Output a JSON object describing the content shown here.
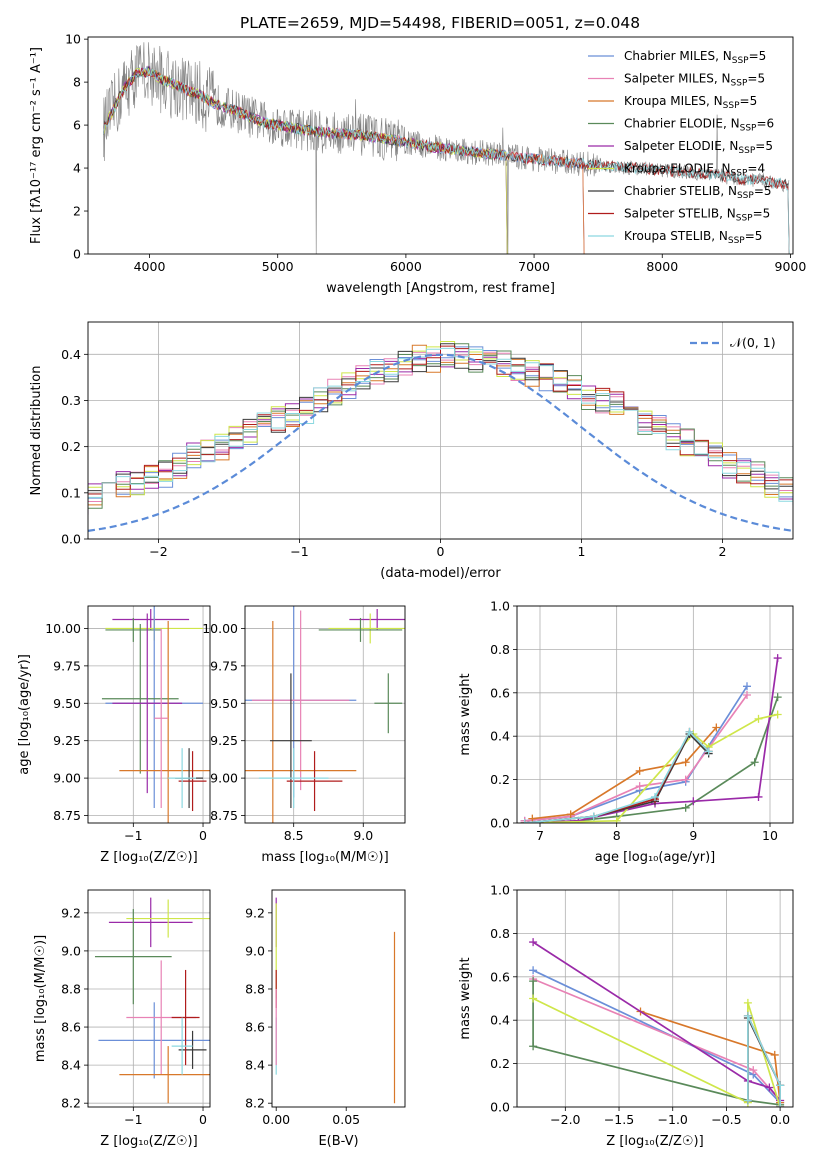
{
  "figure_title": "PLATE=2659, MJD=54498, FIBERID=0051, z=0.048",
  "colors": {
    "Chabrier MILES": "#6b8fd8",
    "Salpeter MILES": "#e882b5",
    "Kroupa MILES": "#d8782a",
    "Chabrier ELODIE": "#5a8a5a",
    "Salpeter ELODIE": "#9a2aa8",
    "Kroupa ELODIE": "#cfe64a",
    "Chabrier STELIB": "#3a3a3a",
    "Salpeter STELIB": "#b01c1c",
    "Kroupa STELIB": "#8cd8e0",
    "data": "#808080",
    "normal": "#5b8bd8"
  },
  "chart_data": [
    {
      "id": "spectrum",
      "type": "line",
      "xlabel": "wavelength [Angstrom, rest frame]",
      "ylabel": "Flux [fλ10⁻¹⁷ erg cm⁻² s⁻¹ A⁻¹]",
      "xlim": [
        3520,
        9020
      ],
      "ylim": [
        0,
        10.1
      ],
      "xticks": [
        4000,
        5000,
        6000,
        7000,
        8000,
        9000
      ],
      "yticks": [
        0,
        2,
        4,
        6,
        8,
        10
      ],
      "grid": false,
      "legend": "top-right",
      "continuum": {
        "x": [
          3640,
          3700,
          3800,
          3900,
          4000,
          4100,
          4200,
          4300,
          4400,
          4500,
          4700,
          4900,
          5100,
          5300,
          5500,
          5700,
          6000,
          6300,
          6600,
          6900,
          7200,
          7400,
          7600,
          7800,
          8000,
          8200,
          8400,
          8600,
          8800,
          8990
        ],
        "y": [
          5.8,
          6.5,
          7.7,
          8.4,
          8.5,
          8.1,
          7.9,
          7.6,
          7.4,
          7.0,
          6.6,
          6.1,
          5.9,
          5.7,
          5.6,
          5.5,
          5.2,
          4.9,
          4.7,
          4.5,
          4.3,
          4.2,
          4.1,
          4.0,
          3.9,
          3.8,
          3.7,
          3.5,
          3.4,
          3.2
        ]
      },
      "model_end": {
        "Chabrier MILES": 7400,
        "Salpeter MILES": 7400,
        "Kroupa MILES": 7400,
        "Chabrier ELODIE": 6800,
        "Salpeter ELODIE": 6800,
        "Kroupa ELODIE": 6800,
        "Chabrier STELIB": 9000,
        "Salpeter STELIB": 9000,
        "Kroupa STELIB": 9000
      },
      "series": [
        {
          "name": "Chabrier MILES",
          "label": "Chabrier MILES, N",
          "n": "5"
        },
        {
          "name": "Salpeter MILES",
          "label": "Salpeter MILES, N",
          "n": "5"
        },
        {
          "name": "Kroupa MILES",
          "label": "Kroupa MILES, N",
          "n": "5"
        },
        {
          "name": "Chabrier ELODIE",
          "label": "Chabrier ELODIE, N",
          "n": "6"
        },
        {
          "name": "Salpeter ELODIE",
          "label": "Salpeter ELODIE, N",
          "n": "5"
        },
        {
          "name": "Kroupa ELODIE",
          "label": "Kroupa ELODIE, N",
          "n": "4"
        },
        {
          "name": "Chabrier STELIB",
          "label": "Chabrier STELIB, N",
          "n": "5"
        },
        {
          "name": "Salpeter STELIB",
          "label": "Salpeter STELIB, N",
          "n": "5"
        },
        {
          "name": "Kroupa STELIB",
          "label": "Kroupa STELIB, N",
          "n": "5"
        }
      ],
      "n_sub": "SSP"
    },
    {
      "id": "residuals",
      "type": "histogram",
      "xlabel": "(data-model)/error",
      "ylabel": "Normed distribution",
      "xlim": [
        -2.5,
        2.5
      ],
      "ylim": [
        0,
        0.47
      ],
      "xticks": [
        -2,
        -1,
        0,
        1,
        2
      ],
      "yticks": [
        0.0,
        0.1,
        0.2,
        0.3,
        0.4
      ],
      "grid": true,
      "legend": "top-right",
      "legend_label": "𝒩(0, 1)",
      "bin_width": 0.1,
      "base": [
        0.03,
        0.03,
        0.035,
        0.04,
        0.045,
        0.05,
        0.06,
        0.06,
        0.07,
        0.08,
        0.08,
        0.09,
        0.1,
        0.12,
        0.12,
        0.13,
        0.14,
        0.16,
        0.18,
        0.19,
        0.2,
        0.22,
        0.23,
        0.25,
        0.26,
        0.27,
        0.28,
        0.3,
        0.32,
        0.33,
        0.35,
        0.36,
        0.37,
        0.38,
        0.39,
        0.39,
        0.4,
        0.4,
        0.39,
        0.39,
        0.38,
        0.37,
        0.36,
        0.35,
        0.34,
        0.33,
        0.31,
        0.3,
        0.29,
        0.27,
        0.25,
        0.24,
        0.22,
        0.21,
        0.19,
        0.18,
        0.16,
        0.15,
        0.14,
        0.12,
        0.11,
        0.1,
        0.09,
        0.08,
        0.07,
        0.06,
        0.06,
        0.05,
        0.045,
        0.04,
        0.035,
        0.03
      ]
    },
    {
      "id": "Z-age",
      "type": "errorbar",
      "xlabel": "Z [log₁₀(Z/Z☉)]",
      "ylabel": "age  [log₁₀(age/yr)]",
      "xlim": [
        -1.65,
        0.1
      ],
      "ylim": [
        8.7,
        10.15
      ],
      "xticks": [
        -1,
        0
      ],
      "yticks": [
        8.75,
        9.0,
        9.25,
        9.5,
        9.75,
        10.0
      ],
      "grid": true,
      "points": [
        {
          "s": "Salpeter ELODIE",
          "x": -0.75,
          "y": 10.06,
          "xe": 0.55,
          "ye": 0.07
        },
        {
          "s": "Kroupa ELODIE",
          "x": -0.7,
          "y": 10.0,
          "xe": 0.7,
          "ye": 0.08
        },
        {
          "s": "Chabrier ELODIE",
          "x": -1.0,
          "y": 9.99,
          "xe": 0.4,
          "ye": 0.08
        },
        {
          "s": "Chabrier MILES",
          "x": -0.7,
          "y": 9.5,
          "xe": 0.7,
          "ye": 0.7
        },
        {
          "s": "Chabrier ELODIE",
          "x": -0.9,
          "y": 9.53,
          "xe": 0.55,
          "ye": 0.5
        },
        {
          "s": "Salpeter ELODIE",
          "x": -0.8,
          "y": 9.5,
          "xe": 0.5,
          "ye": 0.6
        },
        {
          "s": "Kroupa MILES",
          "x": -0.5,
          "y": 9.05,
          "xe": 0.7,
          "ye": 1.0
        },
        {
          "s": "Chabrier STELIB",
          "x": -0.2,
          "y": 9.0,
          "xe": 0.2,
          "ye": 0.2
        },
        {
          "s": "Salpeter STELIB",
          "x": -0.15,
          "y": 8.98,
          "xe": 0.2,
          "ye": 0.2
        },
        {
          "s": "Salpeter MILES",
          "x": -0.6,
          "y": 9.4,
          "xe": 0.1,
          "ye": 0.6
        },
        {
          "s": "Kroupa STELIB",
          "x": -0.3,
          "y": 9.0,
          "xe": 0.2,
          "ye": 0.2
        }
      ]
    },
    {
      "id": "mass-age",
      "type": "errorbar",
      "xlabel": "mass [log₁₀(M/M☉)]",
      "ylabel": "",
      "xlim": [
        8.15,
        9.3
      ],
      "ylim": [
        8.7,
        10.15
      ],
      "xticks": [
        8.5,
        9.0
      ],
      "yticks": [
        8.75,
        9.0,
        9.25,
        9.5,
        9.75,
        10.0
      ],
      "grid": true,
      "points": [
        {
          "s": "Salpeter ELODIE",
          "x": 9.1,
          "y": 10.06,
          "xe": 0.2,
          "ye": 0.07
        },
        {
          "s": "Kroupa ELODIE",
          "x": 9.05,
          "y": 10.0,
          "xe": 0.3,
          "ye": 0.1
        },
        {
          "s": "Chabrier ELODIE",
          "x": 8.98,
          "y": 9.99,
          "xe": 0.3,
          "ye": 0.08
        },
        {
          "s": "Chabrier MILES",
          "x": 8.5,
          "y": 9.52,
          "xe": 0.45,
          "ye": 0.65
        },
        {
          "s": "Salpeter MILES",
          "x": 8.55,
          "y": 9.52,
          "xe": 0.35,
          "ye": 0.6
        },
        {
          "s": "Kroupa MILES",
          "x": 8.35,
          "y": 9.05,
          "xe": 0.6,
          "ye": 1.0
        },
        {
          "s": "Chabrier STELIB",
          "x": 8.48,
          "y": 9.25,
          "xe": 0.15,
          "ye": 0.45
        },
        {
          "s": "Salpeter STELIB",
          "x": 8.65,
          "y": 8.98,
          "xe": 0.2,
          "ye": 0.2
        },
        {
          "s": "Kroupa STELIB",
          "x": 8.5,
          "y": 9.0,
          "xe": 0.25,
          "ye": 0.2
        },
        {
          "s": "Chabrier ELODIE",
          "x": 9.18,
          "y": 9.5,
          "xe": 0.1,
          "ye": 0.2
        }
      ]
    },
    {
      "id": "age-weight",
      "type": "line",
      "xlabel": "age  [log₁₀(age/yr)]",
      "ylabel": "mass weight",
      "xlim": [
        6.7,
        10.3
      ],
      "ylim": [
        0,
        1.0
      ],
      "xticks": [
        7,
        8,
        9,
        10
      ],
      "yticks": [
        0.0,
        0.2,
        0.4,
        0.6,
        0.8,
        1.0
      ],
      "grid": true,
      "series": [
        {
          "name": "Chabrier MILES",
          "x": [
            6.8,
            7.4,
            8.3,
            8.9,
            9.7
          ],
          "y": [
            0.01,
            0.03,
            0.15,
            0.19,
            0.63
          ]
        },
        {
          "name": "Salpeter MILES",
          "x": [
            6.8,
            7.4,
            8.3,
            8.9,
            9.7
          ],
          "y": [
            0.01,
            0.03,
            0.17,
            0.2,
            0.59
          ]
        },
        {
          "name": "Kroupa MILES",
          "x": [
            6.9,
            7.4,
            8.3,
            8.9,
            9.3
          ],
          "y": [
            0.02,
            0.04,
            0.24,
            0.28,
            0.44
          ]
        },
        {
          "name": "Chabrier ELODIE",
          "x": [
            6.8,
            7.5,
            8.0,
            8.9,
            9.8,
            10.1
          ],
          "y": [
            0.0,
            0.01,
            0.03,
            0.07,
            0.28,
            0.58
          ]
        },
        {
          "name": "Salpeter ELODIE",
          "x": [
            6.8,
            7.5,
            8.5,
            9.0,
            9.85,
            10.1
          ],
          "y": [
            0.0,
            0.01,
            0.09,
            0.1,
            0.12,
            0.76
          ]
        },
        {
          "name": "Kroupa ELODIE",
          "x": [
            6.8,
            8.0,
            9.0,
            9.2,
            9.85,
            10.1
          ],
          "y": [
            0.0,
            0.01,
            0.41,
            0.35,
            0.48,
            0.5
          ]
        },
        {
          "name": "Chabrier STELIB",
          "x": [
            6.8,
            7.7,
            8.5,
            8.95,
            9.2
          ],
          "y": [
            0.0,
            0.03,
            0.1,
            0.41,
            0.32
          ]
        },
        {
          "name": "Salpeter STELIB",
          "x": [
            6.8,
            7.7,
            8.5,
            8.95,
            9.2
          ],
          "y": [
            0.0,
            0.03,
            0.11,
            0.42,
            0.33
          ]
        },
        {
          "name": "Kroupa STELIB",
          "x": [
            6.8,
            7.7,
            8.5,
            8.95,
            9.2
          ],
          "y": [
            0.0,
            0.03,
            0.12,
            0.42,
            0.33
          ]
        }
      ]
    },
    {
      "id": "Z-mass",
      "type": "errorbar",
      "xlabel": "Z [log₁₀(Z/Z☉)]",
      "ylabel": "mass [log₁₀(M/M☉)]",
      "xlim": [
        -1.65,
        0.1
      ],
      "ylim": [
        8.18,
        9.32
      ],
      "xticks": [
        -1,
        0
      ],
      "yticks": [
        8.2,
        8.4,
        8.6,
        8.8,
        9.0,
        9.2
      ],
      "grid": true,
      "points": [
        {
          "s": "Salpeter ELODIE",
          "x": -0.75,
          "y": 9.15,
          "xe": 0.6,
          "ye": 0.13
        },
        {
          "s": "Kroupa ELODIE",
          "x": -0.5,
          "y": 9.17,
          "xe": 0.6,
          "ye": 0.1
        },
        {
          "s": "Chabrier ELODIE",
          "x": -1.0,
          "y": 8.97,
          "xe": 0.55,
          "ye": 0.25
        },
        {
          "s": "Chabrier MILES",
          "x": -0.7,
          "y": 8.53,
          "xe": 0.8,
          "ye": 0.2
        },
        {
          "s": "Salpeter MILES",
          "x": -0.6,
          "y": 8.65,
          "xe": 0.5,
          "ye": 0.3
        },
        {
          "s": "Kroupa MILES",
          "x": -0.5,
          "y": 8.35,
          "xe": 0.7,
          "ye": 0.15
        },
        {
          "s": "Chabrier STELIB",
          "x": -0.15,
          "y": 8.48,
          "xe": 0.2,
          "ye": 0.1
        },
        {
          "s": "Salpeter STELIB",
          "x": -0.25,
          "y": 8.65,
          "xe": 0.2,
          "ye": 0.25
        },
        {
          "s": "Kroupa STELIB",
          "x": -0.3,
          "y": 8.5,
          "xe": 0.15,
          "ye": 0.15
        }
      ]
    },
    {
      "id": "EBV-mass",
      "type": "errorbar",
      "xlabel": "E(B-V)",
      "ylabel": "",
      "xlim": [
        -0.003,
        0.092
      ],
      "ylim": [
        8.18,
        9.32
      ],
      "xticks": [
        0.0,
        0.05
      ],
      "yticks": [
        8.2,
        8.4,
        8.6,
        8.8,
        9.0,
        9.2
      ],
      "grid": false,
      "points": [
        {
          "s": "Salpeter ELODIE",
          "x": 0.0,
          "y": 9.15,
          "xe": 0,
          "ye": 0.13
        },
        {
          "s": "Kroupa ELODIE",
          "x": 0.0,
          "y": 9.0,
          "xe": 0,
          "ye": 0.25
        },
        {
          "s": "Salpeter STELIB",
          "x": 0.0,
          "y": 8.8,
          "xe": 0,
          "ye": 0.1
        },
        {
          "s": "Kroupa STELIB",
          "x": 0.0,
          "y": 8.5,
          "xe": 0,
          "ye": 0.15
        },
        {
          "s": "Kroupa MILES",
          "x": 0.0845,
          "y": 8.65,
          "xe": 0,
          "ye": 0.45
        },
        {
          "s": "Salpeter MILES",
          "x": 0.0,
          "y": 8.6,
          "xe": 0,
          "ye": 0.2
        }
      ]
    },
    {
      "id": "Z-weight",
      "type": "line",
      "xlabel": "Z [log₁₀(Z/Z☉)]",
      "ylabel": "mass weight",
      "xlim": [
        -2.45,
        0.12
      ],
      "ylim": [
        0,
        1.0
      ],
      "xticks": [
        -2.0,
        -1.5,
        -1.0,
        -0.5,
        0.0
      ],
      "yticks": [
        0.0,
        0.2,
        0.4,
        0.6,
        0.8,
        1.0
      ],
      "grid": true,
      "series": [
        {
          "name": "Chabrier MILES",
          "x": [
            -2.3,
            -0.25,
            0.0
          ],
          "y": [
            0.63,
            0.15,
            0.02
          ]
        },
        {
          "name": "Salpeter MILES",
          "x": [
            -2.3,
            -0.25,
            0.0
          ],
          "y": [
            0.59,
            0.17,
            0.03
          ]
        },
        {
          "name": "Kroupa MILES",
          "x": [
            -1.3,
            -0.05,
            0.0
          ],
          "y": [
            0.44,
            0.24,
            0.02
          ]
        },
        {
          "name": "Chabrier ELODIE",
          "x": [
            -2.3,
            -2.3,
            -0.3,
            0.0
          ],
          "y": [
            0.58,
            0.28,
            0.03,
            0.01
          ]
        },
        {
          "name": "Salpeter ELODIE",
          "x": [
            -2.3,
            -0.3,
            -0.1,
            0.0
          ],
          "y": [
            0.76,
            0.12,
            0.09,
            0.03
          ]
        },
        {
          "name": "Kroupa ELODIE",
          "x": [
            -2.3,
            -0.3,
            -0.3,
            0.0
          ],
          "y": [
            0.5,
            0.02,
            0.48,
            0.0
          ]
        },
        {
          "name": "Chabrier STELIB",
          "x": [
            -0.3,
            -0.3,
            0.0,
            0.0
          ],
          "y": [
            0.03,
            0.41,
            0.1,
            0.0
          ]
        },
        {
          "name": "Salpeter STELIB",
          "x": [
            -0.3,
            -0.3,
            0.0,
            0.0
          ],
          "y": [
            0.03,
            0.42,
            0.1,
            0.0
          ]
        },
        {
          "name": "Kroupa STELIB",
          "x": [
            -0.3,
            -0.3,
            0.0,
            0.0
          ],
          "y": [
            0.03,
            0.42,
            0.1,
            0.0
          ]
        }
      ]
    }
  ]
}
